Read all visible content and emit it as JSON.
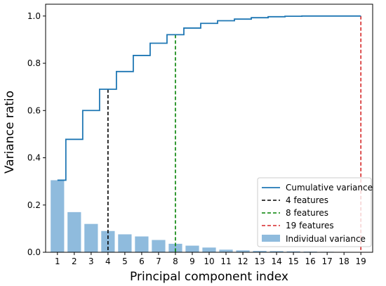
{
  "chart_data": {
    "type": "bar",
    "title": "",
    "xlabel": "Principal component index",
    "ylabel": "Variance ratio",
    "x": [
      1,
      2,
      3,
      4,
      5,
      6,
      7,
      8,
      9,
      10,
      11,
      12,
      13,
      14,
      15,
      16,
      17,
      18,
      19
    ],
    "xlim": [
      0.3,
      19.7
    ],
    "ylim": [
      0,
      1.05
    ],
    "yticks": [
      "0.0",
      "0.2",
      "0.4",
      "0.6",
      "0.8",
      "1.0"
    ],
    "grid": false,
    "legend_position": "lower-right",
    "series": [
      {
        "name": "Individual variance",
        "kind": "bar",
        "color": "#8fbbdd",
        "values": [
          0.305,
          0.17,
          0.12,
          0.09,
          0.076,
          0.067,
          0.052,
          0.036,
          0.028,
          0.02,
          0.011,
          0.008,
          0.006,
          0.005,
          0.004,
          0.003,
          0.002,
          0.001,
          0.001
        ]
      },
      {
        "name": "Cumulative variance",
        "kind": "step",
        "color": "#1f77b4",
        "values": [
          0.305,
          0.478,
          0.6,
          0.69,
          0.765,
          0.833,
          0.885,
          0.921,
          0.949,
          0.969,
          0.98,
          0.987,
          0.993,
          0.997,
          0.999,
          1.0,
          1.0,
          1.0,
          1.0
        ]
      }
    ],
    "reference_lines": [
      {
        "name": "4 features",
        "x": 4,
        "y": 0.69,
        "color": "#000000"
      },
      {
        "name": "8 features",
        "x": 8,
        "y": 0.921,
        "color": "#008000"
      },
      {
        "name": "19 features",
        "x": 19,
        "y": 1.0,
        "color": "#d62728"
      }
    ]
  }
}
